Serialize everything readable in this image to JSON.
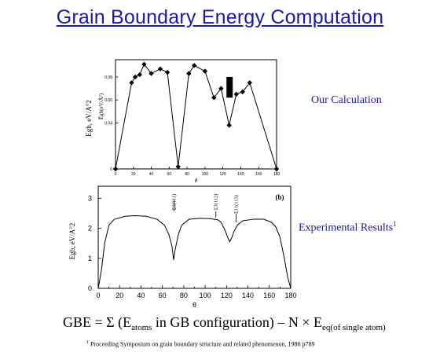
{
  "title": "Grain Boundary Energy Computation",
  "labels": {
    "calc": "Our Calculation",
    "exp": "Experimental Results",
    "exp_sup": "1"
  },
  "formula": {
    "lhs": "GBE = Σ (E",
    "atoms_sub": "atoms",
    "mid": " in GB configuration) – N × E",
    "eq_sub": "eq(of single atom)"
  },
  "footnote": {
    "sup": "1",
    "text": " Proceeding Symposium on grain boundary structure and related phenomenon, 1986 p789"
  },
  "colors": {
    "title": "#1a1aa6",
    "line": "#000000"
  },
  "chart_data": [
    {
      "type": "line",
      "title": "",
      "ylabel_outer": "Egb, eV/A°2",
      "ylabel_inner": "E̅gb(eV/Å²)",
      "xlabel": "θ",
      "xlim": [
        0,
        180
      ],
      "ylim": [
        0,
        0.095
      ],
      "xticks": [
        0,
        20,
        40,
        60,
        80,
        100,
        120,
        140,
        160,
        180
      ],
      "xtick_labels": [
        "0",
        "20",
        "40",
        "60",
        "80",
        "100",
        "120",
        "140",
        "160",
        "180"
      ],
      "yticks": [
        0,
        0.04,
        0.06,
        0.08
      ],
      "ytick_labels": [
        "0",
        "0.04",
        "0.06",
        "0.08"
      ],
      "x": [
        0,
        18,
        22,
        27,
        32,
        40,
        50,
        58,
        70,
        82,
        88,
        100,
        110,
        118,
        127,
        135,
        142,
        150,
        180
      ],
      "y": [
        0,
        0.075,
        0.08,
        0.082,
        0.091,
        0.083,
        0.087,
        0.084,
        0.002,
        0.083,
        0.09,
        0.085,
        0.062,
        0.07,
        0.038,
        0.065,
        0.067,
        0.075,
        0
      ],
      "marker": "diamond",
      "annotation": "filled black rectangle near θ≈128"
    },
    {
      "type": "line",
      "title": "",
      "panel_label": "(b)",
      "ylabel": "Egb, eV/A°2",
      "xlabel": "θ",
      "xlim": [
        0,
        180
      ],
      "ylim": [
        0,
        3.4
      ],
      "xticks": [
        0,
        10,
        20,
        30,
        40,
        50,
        60,
        70,
        80,
        90,
        100,
        110,
        120,
        130,
        140,
        150,
        160,
        170,
        180
      ],
      "xtick_labels": [
        "0",
        "",
        "20",
        "",
        "40",
        "",
        "60",
        "",
        "80",
        "",
        "100",
        "",
        "120",
        "",
        "140",
        "",
        "160",
        "",
        "180"
      ],
      "yticks": [
        0,
        1,
        2,
        3
      ],
      "ytick_labels": [
        "0",
        "1",
        "2",
        "3"
      ],
      "x": [
        0,
        3,
        6,
        10,
        15,
        25,
        35,
        45,
        55,
        62,
        66,
        69,
        70.5,
        72,
        75,
        78,
        85,
        95,
        105,
        112,
        115,
        117,
        119,
        121,
        123,
        125,
        127,
        130,
        135,
        145,
        155,
        162,
        166,
        170,
        174,
        177,
        180
      ],
      "y": [
        0,
        0.6,
        1.5,
        2.1,
        2.3,
        2.4,
        2.42,
        2.4,
        2.3,
        2.1,
        1.8,
        1.4,
        0.95,
        1.3,
        1.8,
        2.1,
        2.3,
        2.33,
        2.32,
        2.28,
        2.2,
        2.05,
        1.9,
        1.7,
        1.55,
        1.7,
        1.9,
        2.1,
        2.25,
        2.3,
        2.3,
        2.2,
        2.05,
        1.7,
        1.0,
        0.4,
        0
      ],
      "annotations": [
        {
          "text": "Σ3(111)",
          "x": 71
        },
        {
          "text": "Σ3(112)",
          "x": 110
        },
        {
          "text": "Σ11(113)",
          "x": 129
        }
      ]
    }
  ]
}
